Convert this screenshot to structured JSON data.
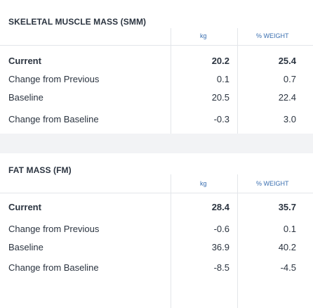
{
  "sections": [
    {
      "title": "SKELETAL MUSCLE MASS (SMM)",
      "col1": "kg",
      "col2": "% WEIGHT",
      "rows": [
        {
          "label": "Current",
          "kg": "20.2",
          "pct": "25.4"
        },
        {
          "label": "Change from Previous",
          "kg": "0.1",
          "pct": "0.7"
        },
        {
          "label": "Baseline",
          "kg": "20.5",
          "pct": "22.4"
        },
        {
          "label": "Change from Baseline",
          "kg": "-0.3",
          "pct": "3.0"
        }
      ]
    },
    {
      "title": "FAT MASS (FM)",
      "col1": "kg",
      "col2": "% WEIGHT",
      "rows": [
        {
          "label": "Current",
          "kg": "28.4",
          "pct": "35.7"
        },
        {
          "label": "Change from Previous",
          "kg": "-0.6",
          "pct": "0.1"
        },
        {
          "label": "Baseline",
          "kg": "36.9",
          "pct": "40.2"
        },
        {
          "label": "Change from Baseline",
          "kg": "-8.5",
          "pct": "-4.5"
        }
      ]
    }
  ]
}
